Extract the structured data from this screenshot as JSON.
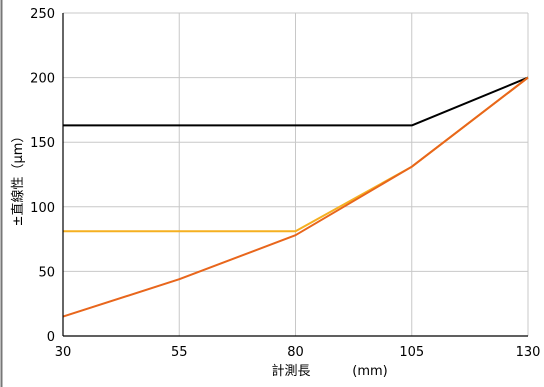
{
  "chart_data": {
    "type": "line",
    "title": "",
    "xlabel": "計測長",
    "xlabel_unit": "(mm)",
    "ylabel": "±直線性（μm）",
    "x": [
      30,
      55,
      80,
      105,
      130
    ],
    "xlim": [
      30,
      130
    ],
    "ylim": [
      0,
      250
    ],
    "xticks": [
      30,
      55,
      80,
      105,
      130
    ],
    "yticks": [
      0,
      50,
      100,
      150,
      200,
      250
    ],
    "grid": true,
    "legend": "none",
    "series": [
      {
        "color": "#000000",
        "values": [
          163,
          163,
          163,
          163,
          200
        ]
      },
      {
        "color": "#f5b021",
        "values": [
          81,
          81,
          81,
          131,
          200
        ]
      },
      {
        "color": "#e8661c",
        "values": [
          15,
          44,
          78,
          131,
          200
        ]
      }
    ]
  },
  "colors": {
    "grid": "#c8c8c8",
    "frame": "#000000",
    "left_border": "#777777"
  }
}
